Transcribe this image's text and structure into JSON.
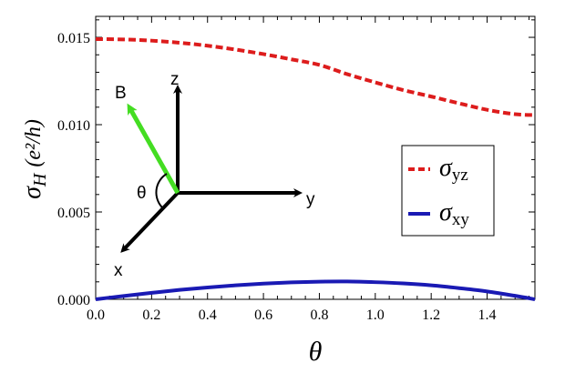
{
  "chart_data": {
    "type": "line",
    "title": "",
    "xlabel": "θ",
    "ylabel": {
      "symbol": "σ",
      "subscript": "H",
      "units": "(e²/h)"
    },
    "xlim": [
      0,
      1.571
    ],
    "ylim": [
      0,
      0.0162
    ],
    "xticks": [
      0.0,
      0.2,
      0.4,
      0.6,
      0.8,
      1.0,
      1.2,
      1.4
    ],
    "xtick_labels": [
      "0.0",
      "0.2",
      "0.4",
      "0.6",
      "0.8",
      "1.0",
      "1.2",
      "1.4"
    ],
    "yticks": [
      0.0,
      0.005,
      0.01,
      0.015
    ],
    "ytick_labels": [
      "0.000",
      "0.005",
      "0.010",
      "0.015"
    ],
    "grid": false,
    "legend_position": "right",
    "series": [
      {
        "name": "σyz",
        "legend_symbol": "σ",
        "legend_subscript": "yz",
        "color": "#dd1c1c",
        "style": "dashed",
        "x": [
          0.0,
          0.1,
          0.2,
          0.3,
          0.4,
          0.5,
          0.6,
          0.7,
          0.8,
          0.9,
          1.0,
          1.1,
          1.2,
          1.3,
          1.4,
          1.5,
          1.571
        ],
        "values": [
          0.0149,
          0.01488,
          0.01481,
          0.01469,
          0.01452,
          0.0143,
          0.01404,
          0.01374,
          0.01342,
          0.01289,
          0.01242,
          0.01198,
          0.01161,
          0.01122,
          0.01085,
          0.0106,
          0.01055
        ]
      },
      {
        "name": "σxy",
        "legend_symbol": "σ",
        "legend_subscript": "xy",
        "color": "#1a1ab4",
        "style": "solid",
        "x": [
          0.0,
          0.1,
          0.2,
          0.3,
          0.4,
          0.5,
          0.6,
          0.7,
          0.8,
          0.9,
          1.0,
          1.1,
          1.2,
          1.3,
          1.4,
          1.5,
          1.571
        ],
        "values": [
          0.0,
          0.00019,
          0.00037,
          0.00054,
          0.00068,
          0.0008,
          0.0009,
          0.00097,
          0.00101,
          0.00102,
          0.00098,
          0.00091,
          0.0008,
          0.00064,
          0.00045,
          0.0002,
          0.0
        ]
      }
    ],
    "inset": {
      "axis_labels": {
        "x": "x",
        "y": "y",
        "z": "z"
      },
      "field_label": "B",
      "angle_label": "θ",
      "field_color": "#44dd22",
      "axis_color": "#000000"
    }
  }
}
